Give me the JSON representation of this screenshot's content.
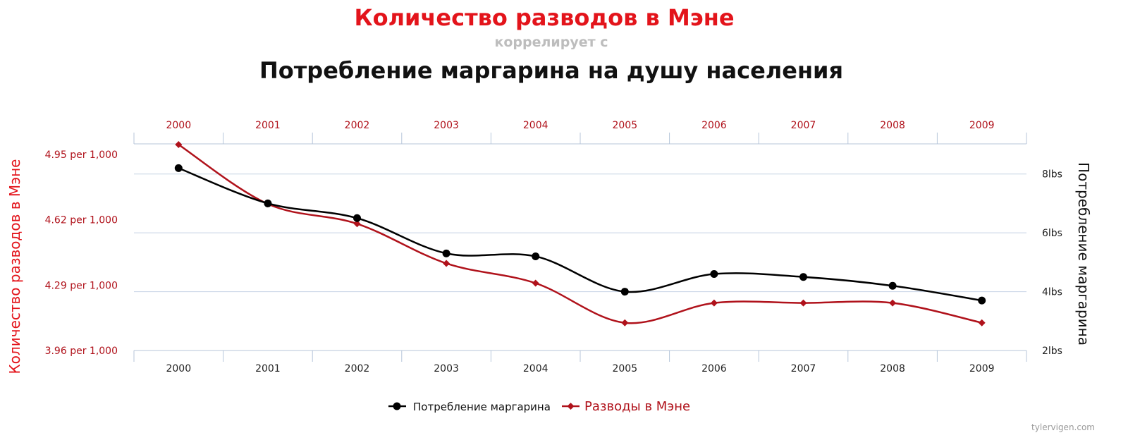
{
  "chart_data": {
    "type": "line",
    "title": "Количество разводов в Мэне",
    "correlation_text": "коррелирует с",
    "subtitle": "Потребление маргарина на душу населения",
    "categories": [
      "2000",
      "2001",
      "2002",
      "2003",
      "2004",
      "2005",
      "2006",
      "2007",
      "2008",
      "2009"
    ],
    "y_left": {
      "label": "Количество разводов в Мэне",
      "ticks": [
        4.95,
        4.62,
        4.29,
        3.96
      ],
      "tick_labels": [
        "4.95 per 1,000",
        "4.62 per 1,000",
        "4.29 per 1,000",
        "3.96 per 1,000"
      ],
      "range": [
        3.96,
        5.0
      ]
    },
    "y_right": {
      "label": "Потребление маргарина",
      "ticks": [
        8,
        6,
        4,
        2
      ],
      "tick_labels": [
        "8lbs",
        "6lbs",
        "4lbs",
        "2lbs"
      ],
      "range": [
        2,
        9
      ]
    },
    "grid": true,
    "legend_position": "bottom-center",
    "series": [
      {
        "name": "Потребление маргарина",
        "axis": "right",
        "color": "#000000",
        "marker": "circle",
        "values": [
          8.2,
          7.0,
          6.5,
          5.3,
          5.2,
          4.0,
          4.6,
          4.5,
          4.2,
          3.7
        ]
      },
      {
        "name": "Разводы в Мэне",
        "axis": "left",
        "color": "#b0121b",
        "marker": "diamond",
        "values": [
          5.0,
          4.7,
          4.6,
          4.4,
          4.3,
          4.1,
          4.2,
          4.2,
          4.2,
          4.1
        ]
      }
    ]
  },
  "credit": "tylervigen.com"
}
